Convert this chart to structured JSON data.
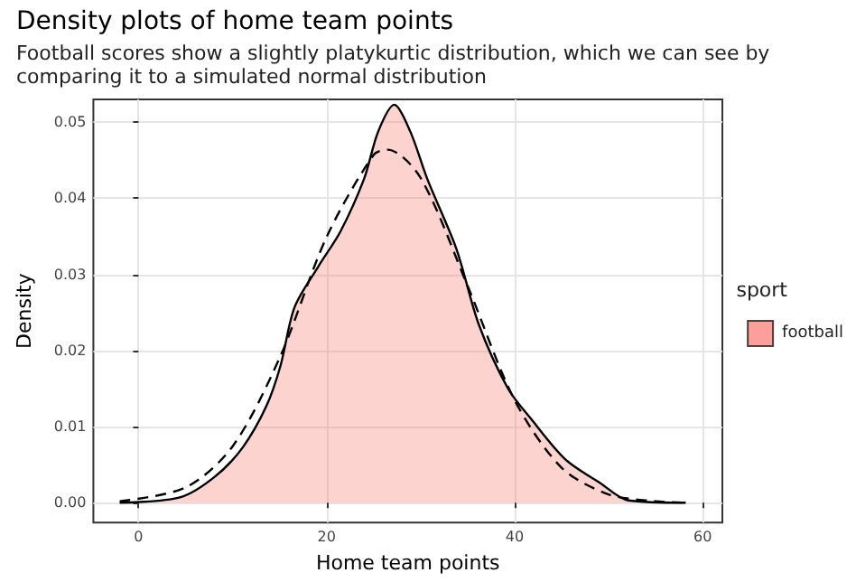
{
  "chart_data": {
    "type": "area",
    "title": "Density plots of home team points",
    "subtitle": "Football scores show a slightly platykurtic distribution, which we can see by comparing it to a simulated normal distribution",
    "xlabel": "Home team points",
    "ylabel": "Density",
    "legend_title": "sport",
    "series": [
      {
        "name": "football",
        "color": "#f8766d",
        "x": [
          -2,
          4.4,
          8.1,
          11.1,
          13.6,
          15.1,
          16.6,
          19.1,
          21.5,
          24.0,
          25.5,
          27.2,
          28.9,
          30.7,
          33.8,
          36.2,
          39.3,
          41.7,
          45.4,
          49.1,
          52.1,
          58.2
        ],
        "values": [
          0.0,
          0.0007,
          0.0034,
          0.0073,
          0.0127,
          0.018,
          0.0257,
          0.031,
          0.0357,
          0.0426,
          0.0488,
          0.0523,
          0.0488,
          0.0426,
          0.0334,
          0.0234,
          0.015,
          0.0111,
          0.0057,
          0.0026,
          0.0003,
          0.0
        ]
      },
      {
        "type": "line",
        "color": "#000000",
        "line_style": "dashed",
        "x": [
          -2,
          5,
          10,
          15,
          20,
          25,
          26.5,
          30,
          35,
          40,
          45,
          50,
          55,
          58.5
        ],
        "values": [
          0.0002,
          0.002,
          0.0074,
          0.019,
          0.0349,
          0.0457,
          0.0464,
          0.0427,
          0.0285,
          0.0135,
          0.0046,
          0.0011,
          0.0002,
          0.0
        ]
      }
    ],
    "xlim": [
      -4.8,
      62.1
    ],
    "xticks": [
      0,
      20,
      40,
      60
    ],
    "ylim": [
      -0.0026,
      0.053
    ],
    "yticks": [
      {
        "value": 0,
        "label": "0.00"
      },
      {
        "value": 0.01,
        "label": "0.01"
      },
      {
        "value": 0.02,
        "label": "0.02"
      },
      {
        "value": 0.03,
        "label": "0.03"
      },
      {
        "value": 0.04,
        "label": "0.04"
      },
      {
        "value": 0.05,
        "label": "0.05"
      }
    ],
    "grid": true,
    "legend": "right",
    "marker": "none"
  }
}
